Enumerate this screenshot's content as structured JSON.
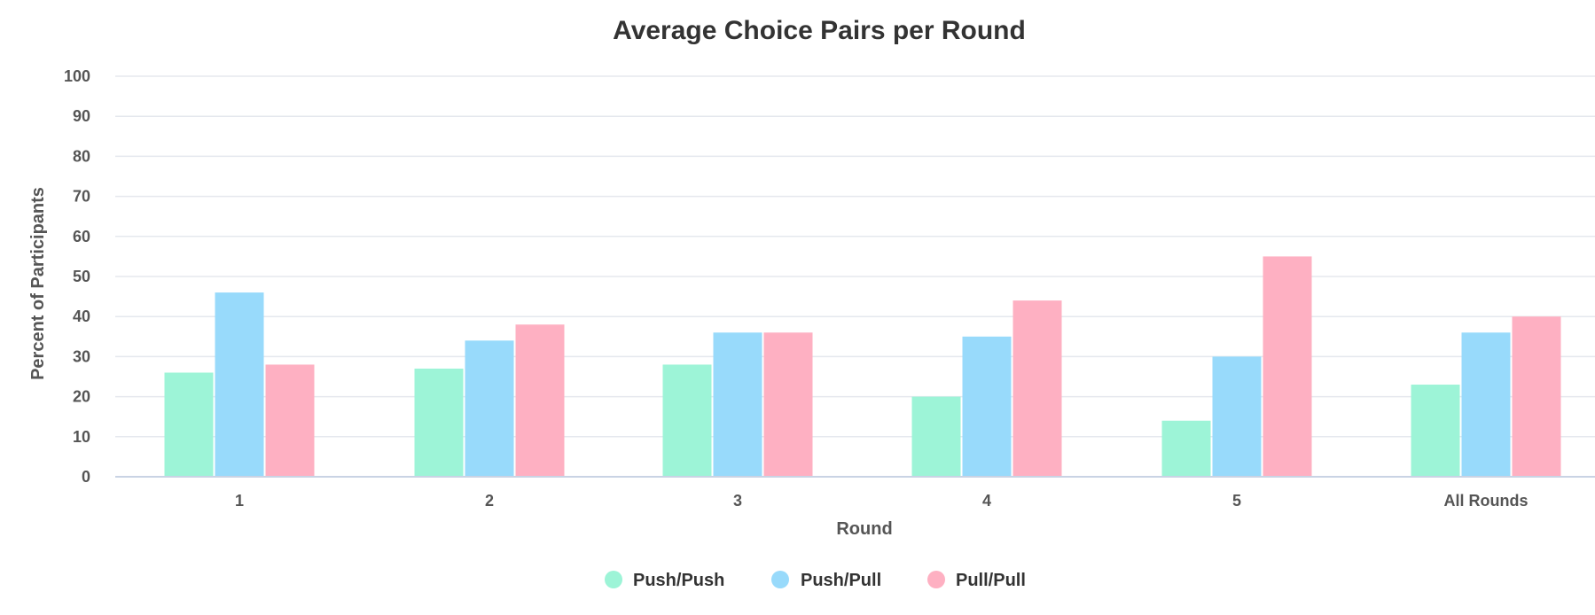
{
  "chart_data": {
    "type": "bar",
    "title": "Average Choice Pairs per Round",
    "xlabel": "Round",
    "ylabel": "Percent of Participants",
    "ylim": [
      0,
      100
    ],
    "yticks": [
      0,
      10,
      20,
      30,
      40,
      50,
      60,
      70,
      80,
      90,
      100
    ],
    "categories": [
      "1",
      "2",
      "3",
      "4",
      "5",
      "All Rounds"
    ],
    "series": [
      {
        "name": "Push/Push",
        "color": "#9df4d7",
        "values": [
          26,
          27,
          28,
          20,
          14,
          23
        ]
      },
      {
        "name": "Push/Pull",
        "color": "#98dafb",
        "values": [
          46,
          34,
          36,
          35,
          30,
          36
        ]
      },
      {
        "name": "Pull/Pull",
        "color": "#feb0c2",
        "values": [
          28,
          38,
          36,
          44,
          55,
          40
        ]
      }
    ],
    "grid": true,
    "legend_position": "bottom-center"
  }
}
